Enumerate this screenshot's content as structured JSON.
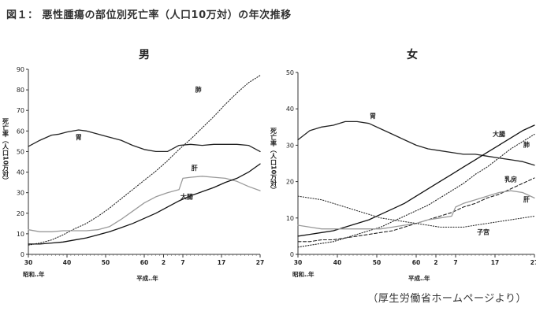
{
  "figure_title": "図１： 悪性腫瘍の部位別死亡率（人口10万対）の年次推移",
  "source": "（厚生労働省ホームページより）",
  "chart_data": [
    {
      "type": "line",
      "title": "男",
      "ylabel": "死亡率（人口10万対）",
      "ylim": [
        0,
        90
      ],
      "y_ticks": [
        0,
        10,
        20,
        30,
        40,
        50,
        60,
        70,
        80,
        90
      ],
      "x_tick_labels": [
        "30",
        "40",
        "50",
        "60",
        "2",
        "7",
        "17",
        "27"
      ],
      "x_era_labels": [
        "昭和‥年",
        "平成‥年"
      ],
      "xlim": [
        1955,
        2015
      ],
      "grid": false,
      "series": [
        {
          "name": "胃",
          "style": "solid",
          "color": "#222222",
          "x": [
            1955,
            1958,
            1961,
            1963,
            1965,
            1968,
            1970,
            1973,
            1976,
            1979,
            1982,
            1985,
            1988,
            1991,
            1994,
            1997,
            2000,
            2003,
            2006,
            2009,
            2012,
            2015
          ],
          "y": [
            52.5,
            55.5,
            58,
            58.5,
            59.5,
            60.5,
            60,
            58.5,
            57,
            55.5,
            53,
            51,
            50,
            50,
            53,
            53.5,
            53,
            53.5,
            53.5,
            53.5,
            53,
            50
          ]
        },
        {
          "name": "肺",
          "style": "dotted",
          "color": "#222222",
          "x": [
            1955,
            1958,
            1961,
            1964,
            1967,
            1970,
            1973,
            1976,
            1979,
            1982,
            1985,
            1988,
            1991,
            1994,
            1997,
            2000,
            2003,
            2006,
            2009,
            2012,
            2015
          ],
          "y": [
            4.5,
            5.5,
            7,
            9.5,
            12.5,
            15,
            18.5,
            22.5,
            27,
            31.5,
            36,
            40.5,
            45.5,
            51,
            56,
            61.5,
            67,
            73,
            78.5,
            83.5,
            87
          ]
        },
        {
          "name": "肝",
          "style": "solid",
          "color": "#9a9a9a",
          "x": [
            1955,
            1958,
            1961,
            1964,
            1967,
            1970,
            1973,
            1976,
            1979,
            1982,
            1985,
            1988,
            1991,
            1994,
            1995,
            1997,
            2000,
            2003,
            2006,
            2009,
            2012,
            2015
          ],
          "y": [
            12,
            11,
            11,
            11.5,
            11.5,
            11.5,
            12,
            13.5,
            17,
            21,
            25,
            28,
            30,
            31.5,
            37,
            37.5,
            38,
            37.5,
            37,
            35.5,
            33,
            31
          ]
        },
        {
          "name": "大腸",
          "style": "solid",
          "color": "#111111",
          "x": [
            1955,
            1958,
            1961,
            1964,
            1967,
            1970,
            1973,
            1976,
            1979,
            1982,
            1985,
            1988,
            1991,
            1994,
            1997,
            2000,
            2003,
            2006,
            2009,
            2012,
            2015
          ],
          "y": [
            5,
            5,
            5.5,
            6,
            7,
            8,
            9.5,
            11,
            13,
            15,
            17.5,
            20,
            23,
            26,
            28.5,
            30.5,
            32.5,
            35,
            37,
            40,
            44
          ]
        }
      ],
      "annotations": [
        {
          "text": "胃",
          "x": 1968,
          "y": 56
        },
        {
          "text": "肺",
          "x": 1999,
          "y": 79
        },
        {
          "text": "肝",
          "x": 1998,
          "y": 41
        },
        {
          "text": "大腸",
          "x": 1996,
          "y": 27
        }
      ]
    },
    {
      "type": "line",
      "title": "女",
      "ylabel": "死亡率（人口10万対）",
      "ylim": [
        0,
        50
      ],
      "y_ticks": [
        0,
        10,
        20,
        30,
        40,
        50
      ],
      "x_tick_labels": [
        "30",
        "40",
        "50",
        "60",
        "2",
        "7",
        "17",
        "27"
      ],
      "x_era_labels": [
        "昭和‥年",
        "平成‥年"
      ],
      "xlim": [
        1955,
        2015
      ],
      "grid": false,
      "series": [
        {
          "name": "胃",
          "style": "solid",
          "color": "#222222",
          "x": [
            1955,
            1958,
            1961,
            1964,
            1967,
            1970,
            1973,
            1976,
            1979,
            1982,
            1985,
            1988,
            1991,
            1994,
            1997,
            2000,
            2003,
            2006,
            2009,
            2012,
            2015
          ],
          "y": [
            31.5,
            34,
            35,
            35.5,
            36.5,
            36.5,
            36,
            34.5,
            33,
            31.5,
            30,
            29,
            28.5,
            28,
            27.5,
            27.5,
            27,
            26.5,
            26,
            25.5,
            24.5
          ]
        },
        {
          "name": "大腸",
          "style": "solid",
          "color": "#111111",
          "x": [
            1955,
            1958,
            1961,
            1964,
            1967,
            1970,
            1973,
            1976,
            1979,
            1982,
            1985,
            1988,
            1991,
            1994,
            1997,
            2000,
            2003,
            2006,
            2009,
            2012,
            2015
          ],
          "y": [
            5,
            5.5,
            6,
            6.5,
            7.5,
            8.5,
            9.5,
            11,
            12.5,
            14,
            16,
            18,
            20,
            22,
            24,
            26,
            28,
            30,
            32,
            34,
            35.5
          ]
        },
        {
          "name": "肺",
          "style": "dotted",
          "color": "#222222",
          "x": [
            1955,
            1958,
            1961,
            1964,
            1967,
            1970,
            1973,
            1976,
            1979,
            1982,
            1985,
            1988,
            1991,
            1994,
            1997,
            2000,
            2003,
            2006,
            2009,
            2012,
            2015
          ],
          "y": [
            2,
            2.5,
            3,
            3.5,
            4.5,
            5.5,
            6.5,
            7.5,
            9,
            10.5,
            12,
            13.5,
            15.5,
            17.5,
            19.5,
            22,
            24,
            26.5,
            29,
            31,
            33
          ]
        },
        {
          "name": "乳房",
          "style": "dashed",
          "color": "#222222",
          "x": [
            1955,
            1958,
            1961,
            1964,
            1967,
            1970,
            1973,
            1976,
            1979,
            1982,
            1985,
            1988,
            1991,
            1994,
            1997,
            2000,
            2003,
            2006,
            2009,
            2012,
            2015
          ],
          "y": [
            3.5,
            3.5,
            4,
            4,
            4.5,
            5,
            5.5,
            6,
            6.5,
            7.5,
            8.5,
            9.5,
            10.5,
            11.5,
            13,
            14,
            15.5,
            16.5,
            18,
            19.5,
            21
          ]
        },
        {
          "name": "肝",
          "style": "solid",
          "color": "#9a9a9a",
          "x": [
            1955,
            1958,
            1961,
            1964,
            1967,
            1970,
            1973,
            1976,
            1979,
            1982,
            1985,
            1988,
            1991,
            1994,
            1995,
            1997,
            2000,
            2003,
            2006,
            2009,
            2012,
            2015
          ],
          "y": [
            8,
            7.5,
            7,
            7,
            7,
            7,
            7,
            7,
            7.5,
            8,
            8.5,
            9.5,
            10,
            10.5,
            13,
            14,
            15,
            16,
            17,
            17.5,
            17,
            15.5
          ]
        },
        {
          "name": "子宮",
          "style": "dotted",
          "color": "#333333",
          "x": [
            1955,
            1958,
            1961,
            1964,
            1967,
            1970,
            1973,
            1976,
            1979,
            1982,
            1985,
            1988,
            1991,
            1994,
            1997,
            2000,
            2003,
            2006,
            2009,
            2012,
            2015
          ],
          "y": [
            16,
            15.5,
            15,
            14,
            13,
            12,
            11,
            10,
            9.5,
            9,
            8.5,
            8,
            7.5,
            7.5,
            7.5,
            8,
            8.5,
            9,
            9.5,
            10,
            10.5
          ]
        }
      ],
      "annotations": [
        {
          "text": "胃",
          "x": 1974,
          "y": 37.5
        },
        {
          "text": "大腸",
          "x": 2006,
          "y": 32.5
        },
        {
          "text": "肺",
          "x": 2013,
          "y": 29.5
        },
        {
          "text": "乳房",
          "x": 2009,
          "y": 20
        },
        {
          "text": "肝",
          "x": 2013,
          "y": 14.5
        },
        {
          "text": "子宮",
          "x": 2002,
          "y": 5.5
        }
      ]
    }
  ]
}
